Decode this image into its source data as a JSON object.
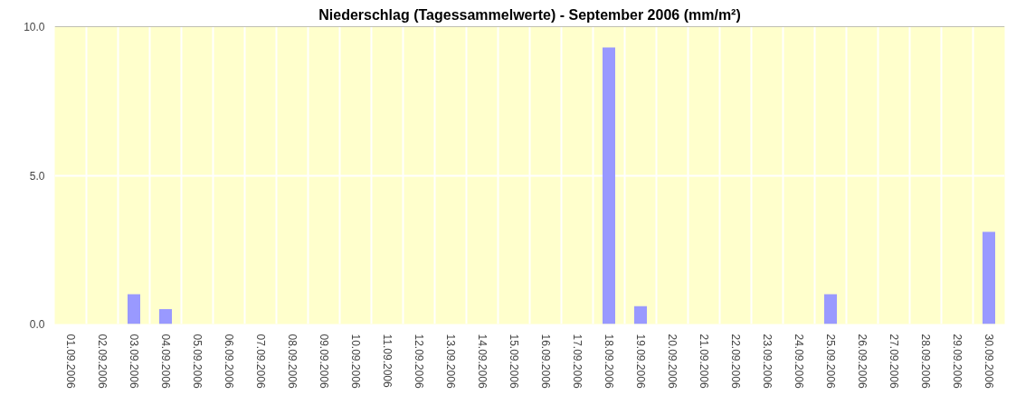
{
  "chart_data": {
    "type": "bar",
    "title": "Niederschlag (Tagessammelwerte) - September 2006 (mm/m²)",
    "categories": [
      "01.09.2006",
      "02.09.2006",
      "03.09.2006",
      "04.09.2006",
      "05.09.2006",
      "06.09.2006",
      "07.09.2006",
      "08.09.2006",
      "09.09.2006",
      "10.09.2006",
      "11.09.2006",
      "12.09.2006",
      "13.09.2006",
      "14.09.2006",
      "15.09.2006",
      "16.09.2006",
      "17.09.2006",
      "18.09.2006",
      "19.09.2006",
      "20.09.2006",
      "21.09.2006",
      "22.09.2006",
      "23.09.2006",
      "24.09.2006",
      "25.09.2006",
      "26.09.2006",
      "27.09.2006",
      "28.09.2006",
      "29.09.2006",
      "30.09.2006"
    ],
    "values": [
      0,
      0,
      1.0,
      0.5,
      0,
      0,
      0,
      0,
      0,
      0,
      0,
      0,
      0,
      0,
      0,
      0,
      0,
      9.3,
      0.6,
      0,
      0,
      0,
      0,
      0,
      1.0,
      0,
      0,
      0,
      0,
      3.1
    ],
    "color": "#9999ff",
    "ylim": [
      0,
      10
    ],
    "yticks": [
      {
        "value": 0,
        "label": "0.0"
      },
      {
        "value": 5,
        "label": "5.0"
      },
      {
        "value": 10,
        "label": "10.0"
      }
    ],
    "grid": true
  }
}
